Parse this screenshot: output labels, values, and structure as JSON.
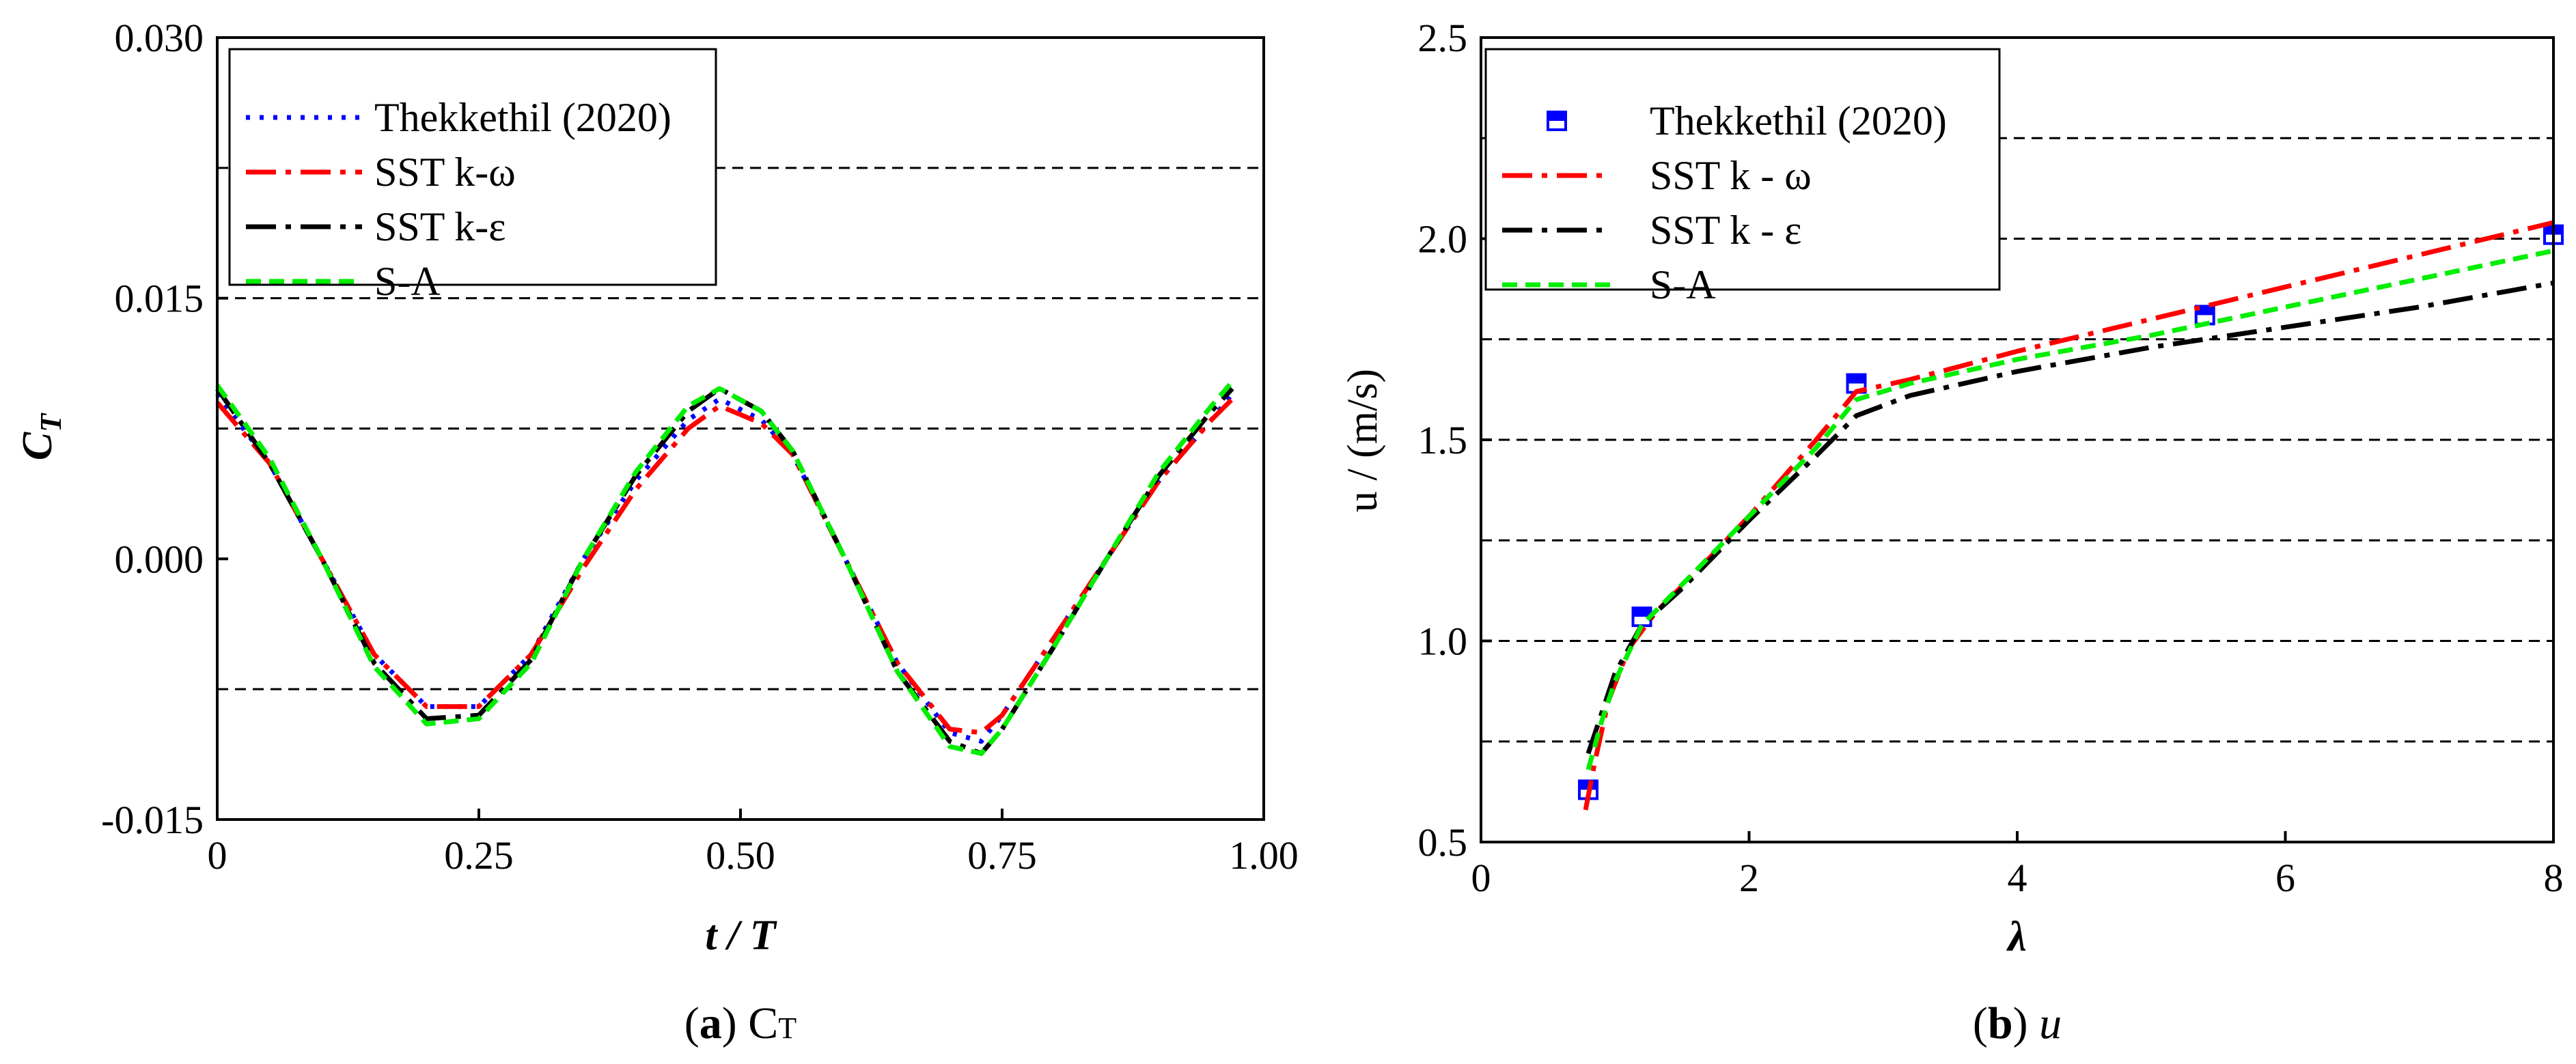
{
  "chart_data": [
    {
      "type": "line",
      "title": "",
      "xlabel": "t / T",
      "ylabel": "C_T",
      "xlim": [
        0,
        1.0
      ],
      "ylim": [
        -0.015,
        0.03
      ],
      "x_ticks": [
        "0",
        "0.25",
        "0.50",
        "0.75",
        "1.00"
      ],
      "y_ticks": [
        "-0.015",
        "0.000",
        "0.015",
        "0.030"
      ],
      "y_ticks_values": [
        -0.015,
        0.0,
        0.015,
        0.03
      ],
      "gridlines_y": [
        -0.0075,
        0.0075,
        0.015,
        0.0225
      ],
      "legend_position": "top-left",
      "caption_prefix": "(",
      "caption_letter": "a",
      "caption_suffix": ")",
      "caption_sym": "C",
      "caption_sub": "T",
      "series": [
        {
          "name": "Thekkethil (2020)",
          "color": "#0000ff",
          "style": "dotted",
          "x": [
            0,
            0.05,
            0.1,
            0.15,
            0.2,
            0.25,
            0.3,
            0.35,
            0.4,
            0.45,
            0.48,
            0.52,
            0.55,
            0.6,
            0.65,
            0.7,
            0.73,
            0.75,
            0.8,
            0.85,
            0.9,
            0.95,
            0.97
          ],
          "values": [
            0.0095,
            0.0055,
            0.0,
            -0.0055,
            -0.0085,
            -0.0085,
            -0.0055,
            0.0,
            0.0045,
            0.008,
            0.0092,
            0.008,
            0.006,
            0.0,
            -0.006,
            -0.01,
            -0.0105,
            -0.009,
            -0.0045,
            0.0,
            0.0045,
            0.008,
            0.0095
          ]
        },
        {
          "name": "SST k-ω",
          "color": "#ff0000",
          "style": "dashdot",
          "x": [
            0,
            0.05,
            0.1,
            0.15,
            0.2,
            0.25,
            0.3,
            0.35,
            0.4,
            0.45,
            0.48,
            0.52,
            0.55,
            0.6,
            0.65,
            0.7,
            0.73,
            0.75,
            0.8,
            0.85,
            0.9,
            0.95,
            0.97
          ],
          "values": [
            0.009,
            0.0055,
            0.0,
            -0.0055,
            -0.0085,
            -0.0085,
            -0.0055,
            -0.0005,
            0.004,
            0.0075,
            0.0088,
            0.0078,
            0.006,
            0.0,
            -0.006,
            -0.0098,
            -0.01,
            -0.009,
            -0.0045,
            0.0,
            0.0045,
            0.008,
            0.0092
          ]
        },
        {
          "name": "SST k-ε",
          "color": "#000000",
          "style": "dashdot",
          "x": [
            0,
            0.05,
            0.1,
            0.15,
            0.2,
            0.25,
            0.3,
            0.35,
            0.4,
            0.45,
            0.48,
            0.52,
            0.55,
            0.6,
            0.65,
            0.7,
            0.73,
            0.75,
            0.8,
            0.85,
            0.9,
            0.95,
            0.97
          ],
          "values": [
            0.0098,
            0.0055,
            0.0,
            -0.006,
            -0.0092,
            -0.009,
            -0.0058,
            0.0,
            0.0048,
            0.0085,
            0.0098,
            0.0085,
            0.0062,
            0.0,
            -0.0065,
            -0.0105,
            -0.0112,
            -0.0098,
            -0.005,
            0.0,
            0.0048,
            0.0085,
            0.0098
          ]
        },
        {
          "name": "S-A",
          "color": "#00ee00",
          "style": "dashed",
          "x": [
            0,
            0.05,
            0.1,
            0.15,
            0.2,
            0.25,
            0.3,
            0.35,
            0.4,
            0.45,
            0.48,
            0.52,
            0.55,
            0.6,
            0.65,
            0.7,
            0.73,
            0.75,
            0.8,
            0.85,
            0.9,
            0.95,
            0.97
          ],
          "values": [
            0.01,
            0.0058,
            0.0,
            -0.0062,
            -0.0095,
            -0.0092,
            -0.006,
            0.0,
            0.005,
            0.0088,
            0.0098,
            0.0085,
            0.0062,
            0.0,
            -0.0065,
            -0.0108,
            -0.0112,
            -0.0098,
            -0.005,
            0.0,
            0.005,
            0.0088,
            0.0102
          ]
        }
      ]
    },
    {
      "type": "line",
      "title": "",
      "xlabel": "λ",
      "ylabel": "u / (m/s)",
      "xlim": [
        0,
        8
      ],
      "ylim": [
        0.5,
        2.5
      ],
      "x_ticks": [
        "0",
        "2",
        "4",
        "6",
        "8"
      ],
      "y_ticks": [
        "0.5",
        "1.0",
        "1.5",
        "2.0",
        "2.5"
      ],
      "y_ticks_values": [
        0.5,
        1.0,
        1.5,
        2.0,
        2.5
      ],
      "gridlines_y": [
        0.75,
        1.0,
        1.25,
        1.5,
        1.75,
        2.0,
        2.25
      ],
      "legend_position": "top-left",
      "caption_prefix": "(",
      "caption_letter": "b",
      "caption_suffix": ")",
      "caption_sym": "u",
      "series": [
        {
          "name": "Thekkethil (2020)",
          "color": "#0000ff",
          "style": "markers",
          "x": [
            0.8,
            1.2,
            2.8,
            5.4,
            8.0
          ],
          "values": [
            0.63,
            1.06,
            1.64,
            1.81,
            2.01
          ]
        },
        {
          "name": "SST k - ω",
          "color": "#ff0000",
          "style": "dashdot",
          "x": [
            0.78,
            0.85,
            0.95,
            1.1,
            1.3,
            1.6,
            2.0,
            2.5,
            2.8,
            3.2,
            4.0,
            5.0,
            6.0,
            7.0,
            8.0
          ],
          "values": [
            0.58,
            0.7,
            0.85,
            0.98,
            1.07,
            1.17,
            1.31,
            1.5,
            1.62,
            1.65,
            1.72,
            1.8,
            1.88,
            1.96,
            2.04
          ]
        },
        {
          "name": "SST k - ε",
          "color": "#000000",
          "style": "dashdot",
          "x": [
            0.8,
            0.9,
            1.0,
            1.2,
            1.5,
            2.0,
            2.5,
            2.8,
            3.2,
            4.0,
            5.0,
            6.0,
            7.0,
            8.0
          ],
          "values": [
            0.72,
            0.82,
            0.92,
            1.04,
            1.13,
            1.3,
            1.46,
            1.56,
            1.61,
            1.67,
            1.73,
            1.78,
            1.83,
            1.89
          ]
        },
        {
          "name": "S-A",
          "color": "#00ee00",
          "style": "dashed",
          "x": [
            0.8,
            0.9,
            1.0,
            1.2,
            1.5,
            2.0,
            2.5,
            2.8,
            3.2,
            4.0,
            5.0,
            6.0,
            7.0,
            8.0
          ],
          "values": [
            0.68,
            0.8,
            0.9,
            1.04,
            1.14,
            1.31,
            1.48,
            1.6,
            1.64,
            1.7,
            1.76,
            1.83,
            1.9,
            1.97
          ]
        }
      ]
    }
  ]
}
